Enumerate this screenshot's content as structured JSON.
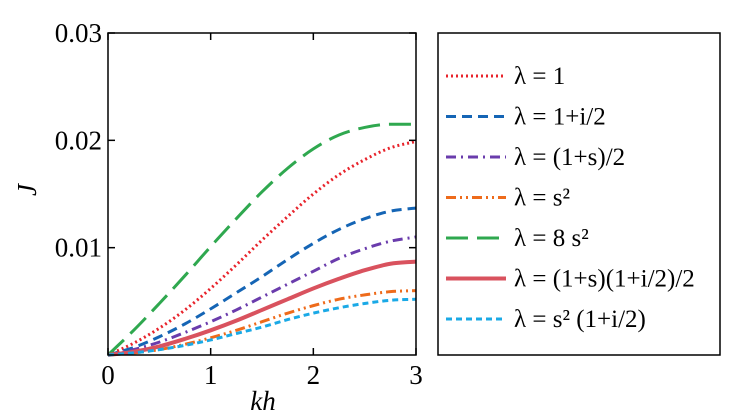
{
  "chart_data": {
    "type": "line",
    "title": "",
    "xlabel": "kh",
    "ylabel": "J",
    "xlim": [
      0,
      3
    ],
    "ylim": [
      0,
      0.03
    ],
    "xticks": [
      0,
      1,
      2,
      3
    ],
    "xtick_labels": [
      "0",
      "1",
      "2",
      "3"
    ],
    "yticks": [
      0.01,
      0.02,
      0.03
    ],
    "ytick_labels": [
      "0.01",
      "0.02",
      "0.03"
    ],
    "grid": false,
    "legend_position": "right, outside plot",
    "x": [
      0,
      0.25,
      0.5,
      0.75,
      1.0,
      1.25,
      1.5,
      1.75,
      2.0,
      2.25,
      2.5,
      2.75,
      3.0
    ],
    "series": [
      {
        "name": "λ = 1",
        "legend_label": "λ = 1",
        "color": "#e8232b",
        "style": "dotted",
        "values": [
          0,
          0.0011,
          0.0025,
          0.0042,
          0.0062,
          0.0084,
          0.0107,
          0.0129,
          0.015,
          0.0168,
          0.0182,
          0.0193,
          0.0199
        ]
      },
      {
        "name": "λ = 1+i/2",
        "legend_label": "λ = 1+i/2",
        "color": "#1565b5",
        "style": "dashed",
        "values": [
          0,
          0.0007,
          0.0017,
          0.0029,
          0.0043,
          0.0058,
          0.0073,
          0.0089,
          0.0104,
          0.0117,
          0.0127,
          0.0134,
          0.0137
        ]
      },
      {
        "name": "λ = (1+s)/2",
        "legend_label": "λ = (1+s)/2",
        "color": "#6a3cac",
        "style": "dashdot",
        "values": [
          0,
          0.0005,
          0.0012,
          0.0021,
          0.0031,
          0.0042,
          0.0054,
          0.0066,
          0.0078,
          0.009,
          0.0099,
          0.0106,
          0.011
        ]
      },
      {
        "name": "λ = s^2",
        "legend_label": "λ = s²",
        "color": "#ee6b1b",
        "style": "dashdotdot",
        "values": [
          0,
          0.0002,
          0.0005,
          0.001,
          0.0016,
          0.0023,
          0.0031,
          0.0039,
          0.0046,
          0.0052,
          0.0056,
          0.0059,
          0.006
        ]
      },
      {
        "name": "λ = 8 s^2",
        "legend_label": "λ = 8 s²",
        "color": "#2fa84f",
        "style": "longdash",
        "values": [
          0,
          0.0023,
          0.0048,
          0.0074,
          0.0101,
          0.0127,
          0.0152,
          0.0174,
          0.0192,
          0.0205,
          0.0212,
          0.0215,
          0.0215
        ]
      },
      {
        "name": "λ = (1+s)(1+i/2)/2",
        "legend_label": "λ = (1+s)(1+i/2)/2",
        "color": "#d9525e",
        "style": "solid",
        "values": [
          0,
          0.0003,
          0.0008,
          0.0015,
          0.0023,
          0.0032,
          0.0042,
          0.0052,
          0.0062,
          0.0071,
          0.0079,
          0.0085,
          0.0087
        ]
      },
      {
        "name": "λ = s^2 (1+i/2)",
        "legend_label": "λ = s² (1+i/2)",
        "color": "#1aa9e6",
        "style": "shortdash",
        "values": [
          0,
          0.0002,
          0.0005,
          0.0009,
          0.0014,
          0.002,
          0.0026,
          0.0033,
          0.0039,
          0.0044,
          0.0048,
          0.0051,
          0.0052
        ]
      }
    ]
  }
}
